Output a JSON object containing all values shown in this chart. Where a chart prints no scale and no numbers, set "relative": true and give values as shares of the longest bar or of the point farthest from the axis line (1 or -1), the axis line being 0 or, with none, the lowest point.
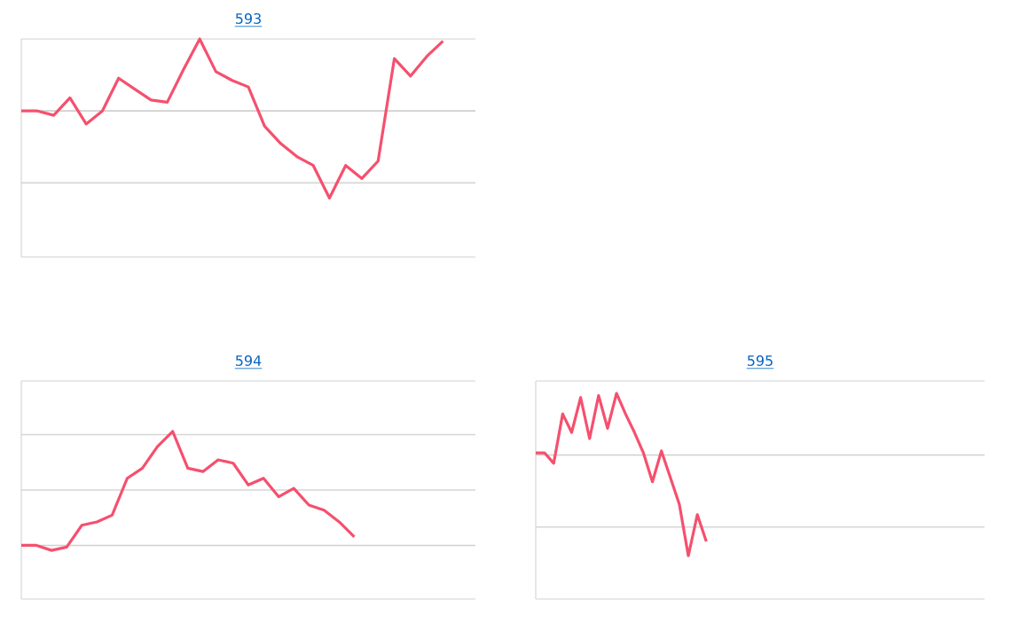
{
  "chart_data": [
    {
      "type": "line",
      "title": "593",
      "relative": true,
      "marker": "none",
      "line_style": "solid",
      "ref_lines": [
        {
          "axis": "y",
          "value": 0.34,
          "color": "#d6d6d6"
        },
        {
          "axis": "y",
          "value": 0.67,
          "color": "#cfcfcf"
        }
      ],
      "categories": [
        null,
        null,
        null,
        null,
        null,
        null,
        null,
        null,
        null,
        null,
        null,
        null,
        null,
        null,
        null,
        null,
        null,
        null,
        null,
        null,
        null,
        null,
        null,
        null,
        null,
        null,
        null,
        null,
        null
      ],
      "series": [
        {
          "color": "#f5506e",
          "values": [
            0.67,
            0.67,
            0.65,
            0.73,
            0.61,
            0.67,
            0.82,
            0.77,
            0.72,
            0.71,
            0.86,
            1.0,
            0.85,
            0.81,
            0.78,
            0.6,
            0.52,
            0.46,
            0.42,
            0.27,
            0.42,
            0.36,
            0.44,
            0.91,
            0.83,
            0.92,
            0.99,
            null,
            null
          ]
        }
      ]
    },
    {
      "type": "line",
      "title": "594",
      "relative": true,
      "marker": "none",
      "line_style": "solid",
      "ref_lines": [
        {
          "axis": "y",
          "value": 0.32,
          "color": "#cfcfcf"
        },
        {
          "axis": "y",
          "value": 0.65,
          "color": "#d6d6d6"
        },
        {
          "axis": "y",
          "value": 0.98,
          "color": "#d6d6d6"
        }
      ],
      "categories": [
        null,
        null,
        null,
        null,
        null,
        null,
        null,
        null,
        null,
        null,
        null,
        null,
        null,
        null,
        null,
        null,
        null,
        null,
        null,
        null,
        null,
        null,
        null,
        null,
        null,
        null,
        null,
        null,
        null,
        null,
        null
      ],
      "series": [
        {
          "color": "#f5506e",
          "values": [
            0.32,
            0.32,
            0.29,
            0.31,
            0.44,
            0.46,
            0.5,
            0.72,
            0.78,
            0.91,
            1.0,
            0.78,
            0.76,
            0.83,
            0.81,
            0.68,
            0.72,
            0.61,
            0.66,
            0.56,
            0.53,
            0.46,
            0.37,
            null,
            null,
            null,
            null,
            null,
            null,
            null,
            null
          ]
        }
      ]
    },
    {
      "type": "line",
      "title": "595",
      "relative": true,
      "marker": "none",
      "line_style": "solid",
      "ref_lines": [
        {
          "axis": "y",
          "value": 0.35,
          "color": "#d6d6d6"
        },
        {
          "axis": "y",
          "value": 0.7,
          "color": "#cfcfcf"
        }
      ],
      "categories": [
        null,
        null,
        null,
        null,
        null,
        null,
        null,
        null,
        null,
        null,
        null,
        null,
        null,
        null,
        null,
        null,
        null,
        null,
        null,
        null,
        null,
        null,
        null,
        null,
        null,
        null,
        null,
        null,
        null,
        null,
        null,
        null,
        null,
        null,
        null,
        null,
        null,
        null,
        null,
        null,
        null,
        null,
        null,
        null,
        null,
        null,
        null,
        null,
        null,
        null,
        null
      ],
      "series": [
        {
          "color": "#f5506e",
          "values": [
            0.71,
            0.71,
            0.66,
            0.9,
            0.81,
            0.98,
            0.78,
            0.99,
            0.83,
            1.0,
            0.9,
            0.81,
            0.71,
            0.57,
            0.72,
            0.59,
            0.46,
            0.21,
            0.41,
            0.28,
            null,
            null,
            null,
            null,
            null,
            null,
            null,
            null,
            null,
            null,
            null,
            null,
            null,
            null,
            null,
            null,
            null,
            null,
            null,
            null,
            null,
            null,
            null,
            null,
            null,
            null,
            null,
            null,
            null,
            null,
            null
          ]
        }
      ]
    }
  ]
}
